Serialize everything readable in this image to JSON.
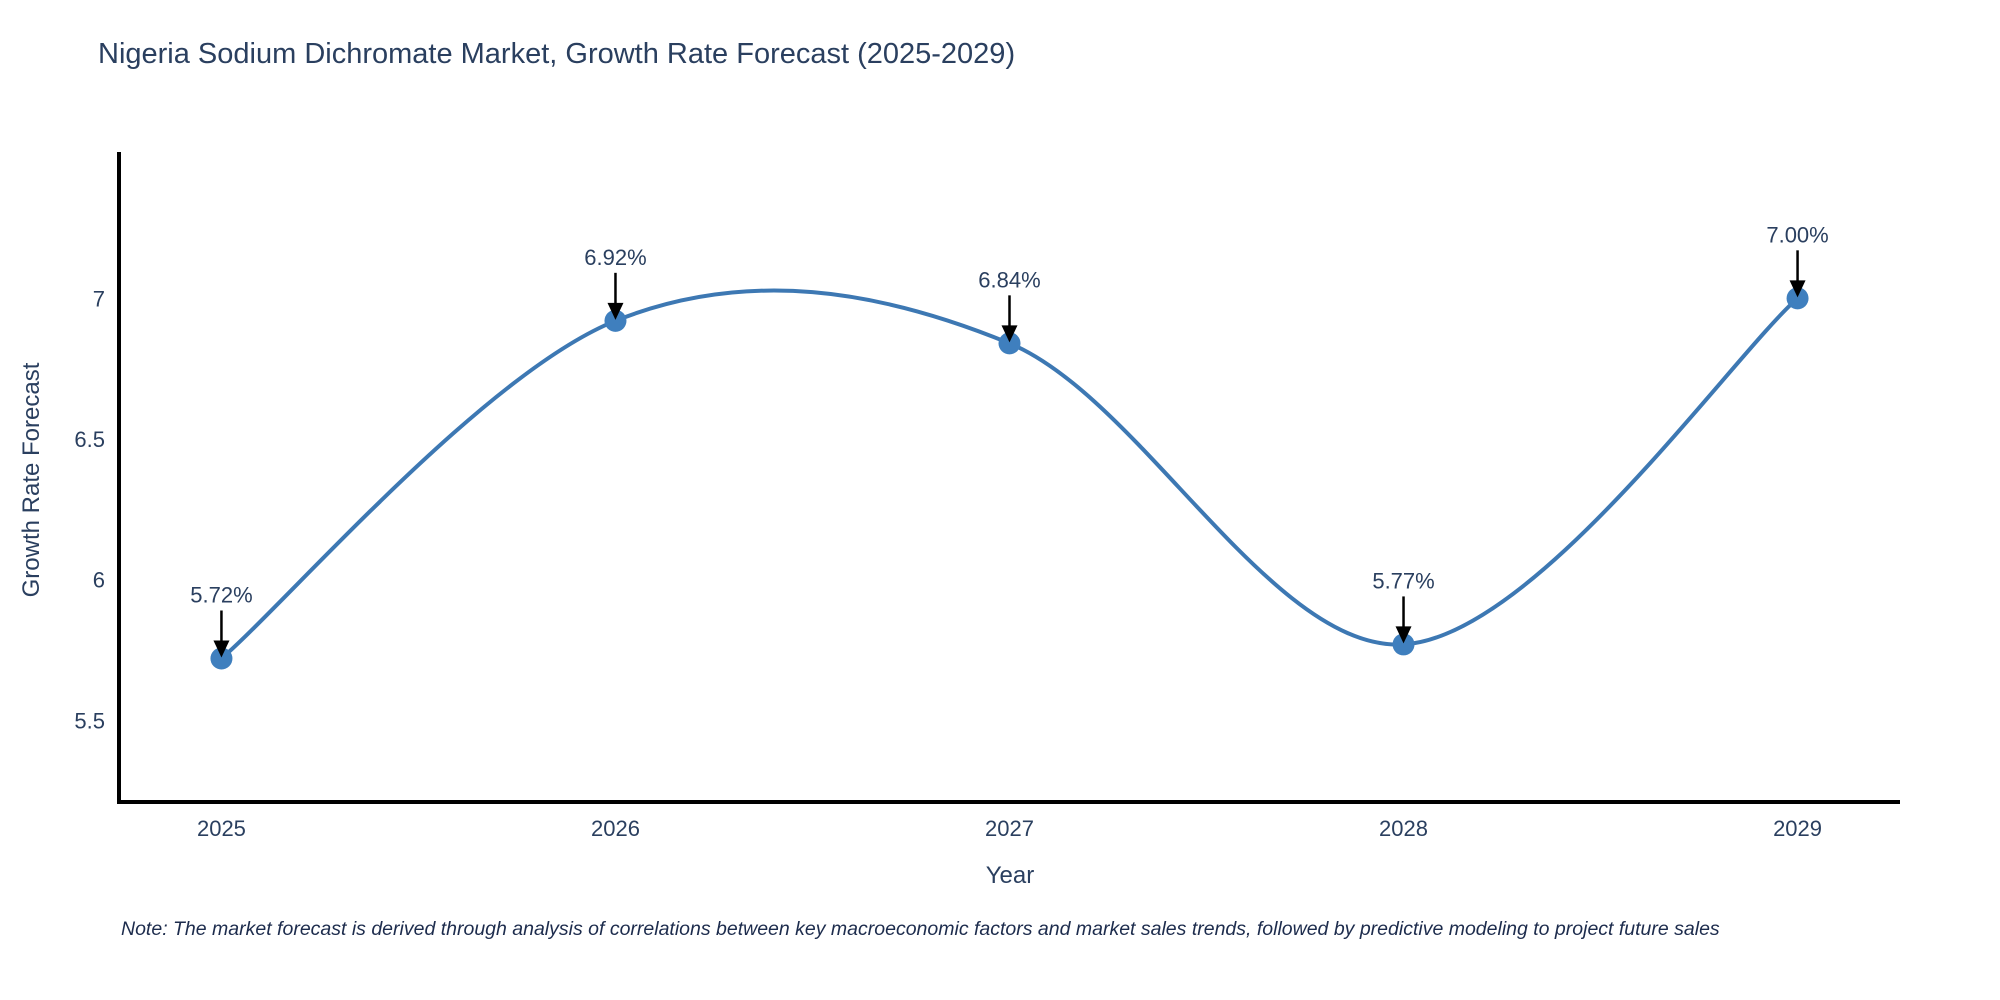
{
  "title": "Nigeria Sodium Dichromate Market, Growth Rate Forecast (2025-2029)",
  "note": "Note: The market forecast is derived through analysis of correlations between key macroeconomic factors and market sales trends, followed by predictive modeling to project future sales",
  "chart_data": {
    "type": "line",
    "title": "Nigeria Sodium Dichromate Market, Growth Rate Forecast (2025-2029)",
    "xlabel": "Year",
    "ylabel": "Growth Rate Forecast",
    "x": [
      2025,
      2026,
      2027,
      2028,
      2029
    ],
    "y": [
      5.72,
      6.92,
      6.84,
      5.77,
      7.0
    ],
    "point_labels": [
      "5.72%",
      "6.92%",
      "6.84%",
      "5.77%",
      "7.00%"
    ],
    "x_tick_labels": [
      "2025",
      "2026",
      "2027",
      "2028",
      "2029"
    ],
    "y_tick_values": [
      5.5,
      6,
      6.5,
      7
    ],
    "y_tick_labels": [
      "5.5",
      "6",
      "6.5",
      "7"
    ],
    "xlim": [
      2024.74,
      2029.26
    ],
    "ylim": [
      5.21,
      7.52
    ],
    "grid": false,
    "legend_position": "none",
    "line_shape": "spline",
    "colors": {
      "line": "#3d78b3",
      "marker": "#3f7fbe",
      "axis": "#000000",
      "tick_text": "#2a3f5f",
      "annotation_text": "#2a3f5f",
      "annotation_arrow": "#000000"
    }
  }
}
